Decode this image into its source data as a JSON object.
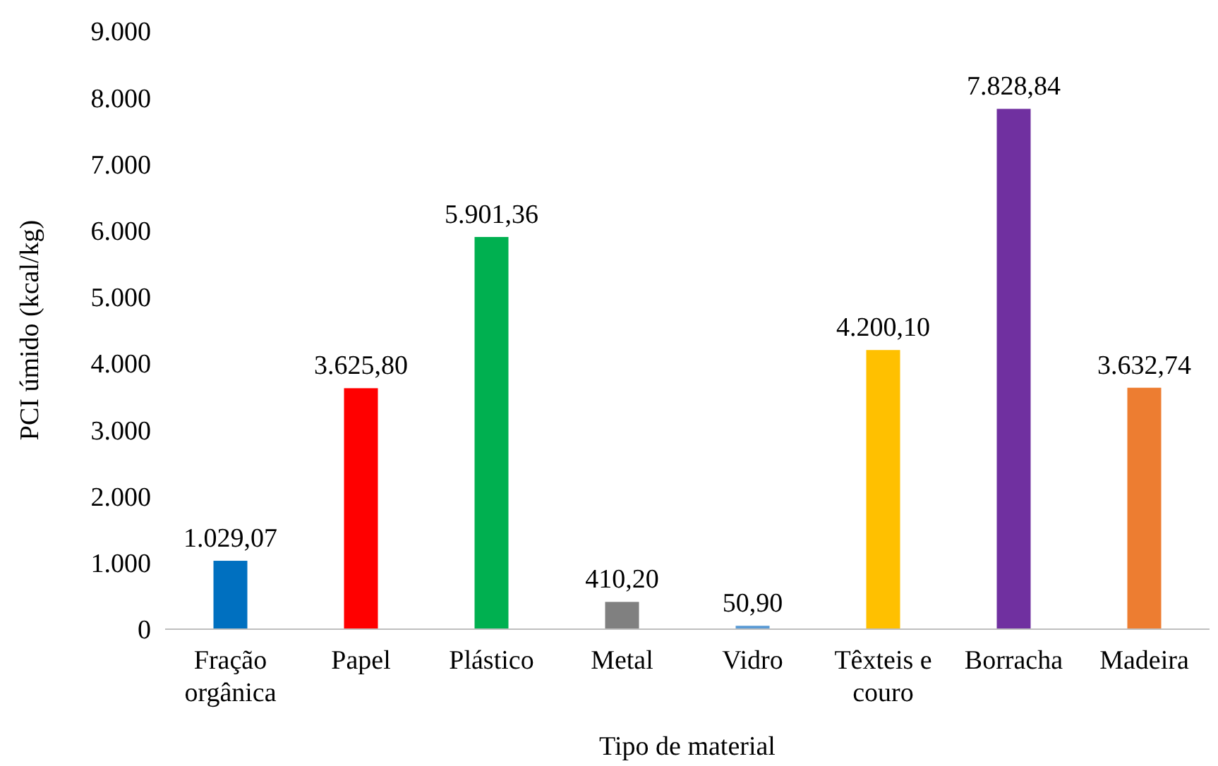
{
  "chart_data": {
    "type": "bar",
    "xlabel": "Tipo de material",
    "ylabel": "PCI úmido (kcal/kg)",
    "categories": [
      "Fração orgânica",
      "Papel",
      "Plástico",
      "Metal",
      "Vidro",
      "Têxteis e couro",
      "Borracha",
      "Madeira"
    ],
    "values": [
      1029.07,
      3625.8,
      5901.36,
      410.2,
      50.9,
      4200.1,
      7828.84,
      3632.74
    ],
    "colors": [
      "#0070c0",
      "#ff0000",
      "#00b050",
      "#808080",
      "#5b9bd5",
      "#ffc000",
      "#7030a0",
      "#ed7d31"
    ],
    "value_labels": [
      "1.029,07",
      "3.625,80",
      "5.901,36",
      "410,20",
      "50,90",
      "4.200,10",
      "7.828,84",
      "3.632,74"
    ],
    "ylim": [
      0,
      9000
    ],
    "yticks": [
      0,
      {
        "value": 1000,
        "label": "1.000"
      },
      {
        "value": 2000,
        "label": "2.000"
      },
      {
        "value": 3000,
        "label": "3.000"
      },
      {
        "value": 4000,
        "label": "4.000"
      },
      {
        "value": 5000,
        "label": "5.000"
      },
      {
        "value": 6000,
        "label": "6.000"
      },
      {
        "value": 7000,
        "label": "7.000"
      },
      {
        "value": 8000,
        "label": "8.000"
      },
      {
        "value": 9000,
        "label": "9.000"
      }
    ]
  }
}
